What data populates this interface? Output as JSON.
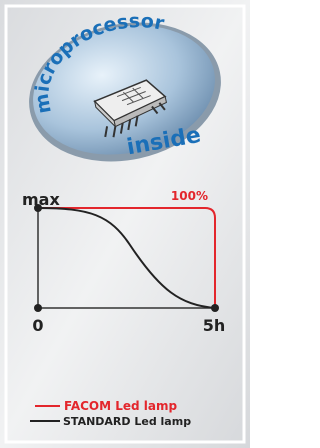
{
  "badge": {
    "line1": "microprocessor",
    "line2": "inside"
  },
  "diagram": {
    "y_label": "max",
    "peak_label": "100%",
    "x_start": "0",
    "x_end": "5h"
  },
  "legend": [
    {
      "label": "FACOM Led lamp"
    },
    {
      "label": "STANDARD Led lamp"
    }
  ]
}
